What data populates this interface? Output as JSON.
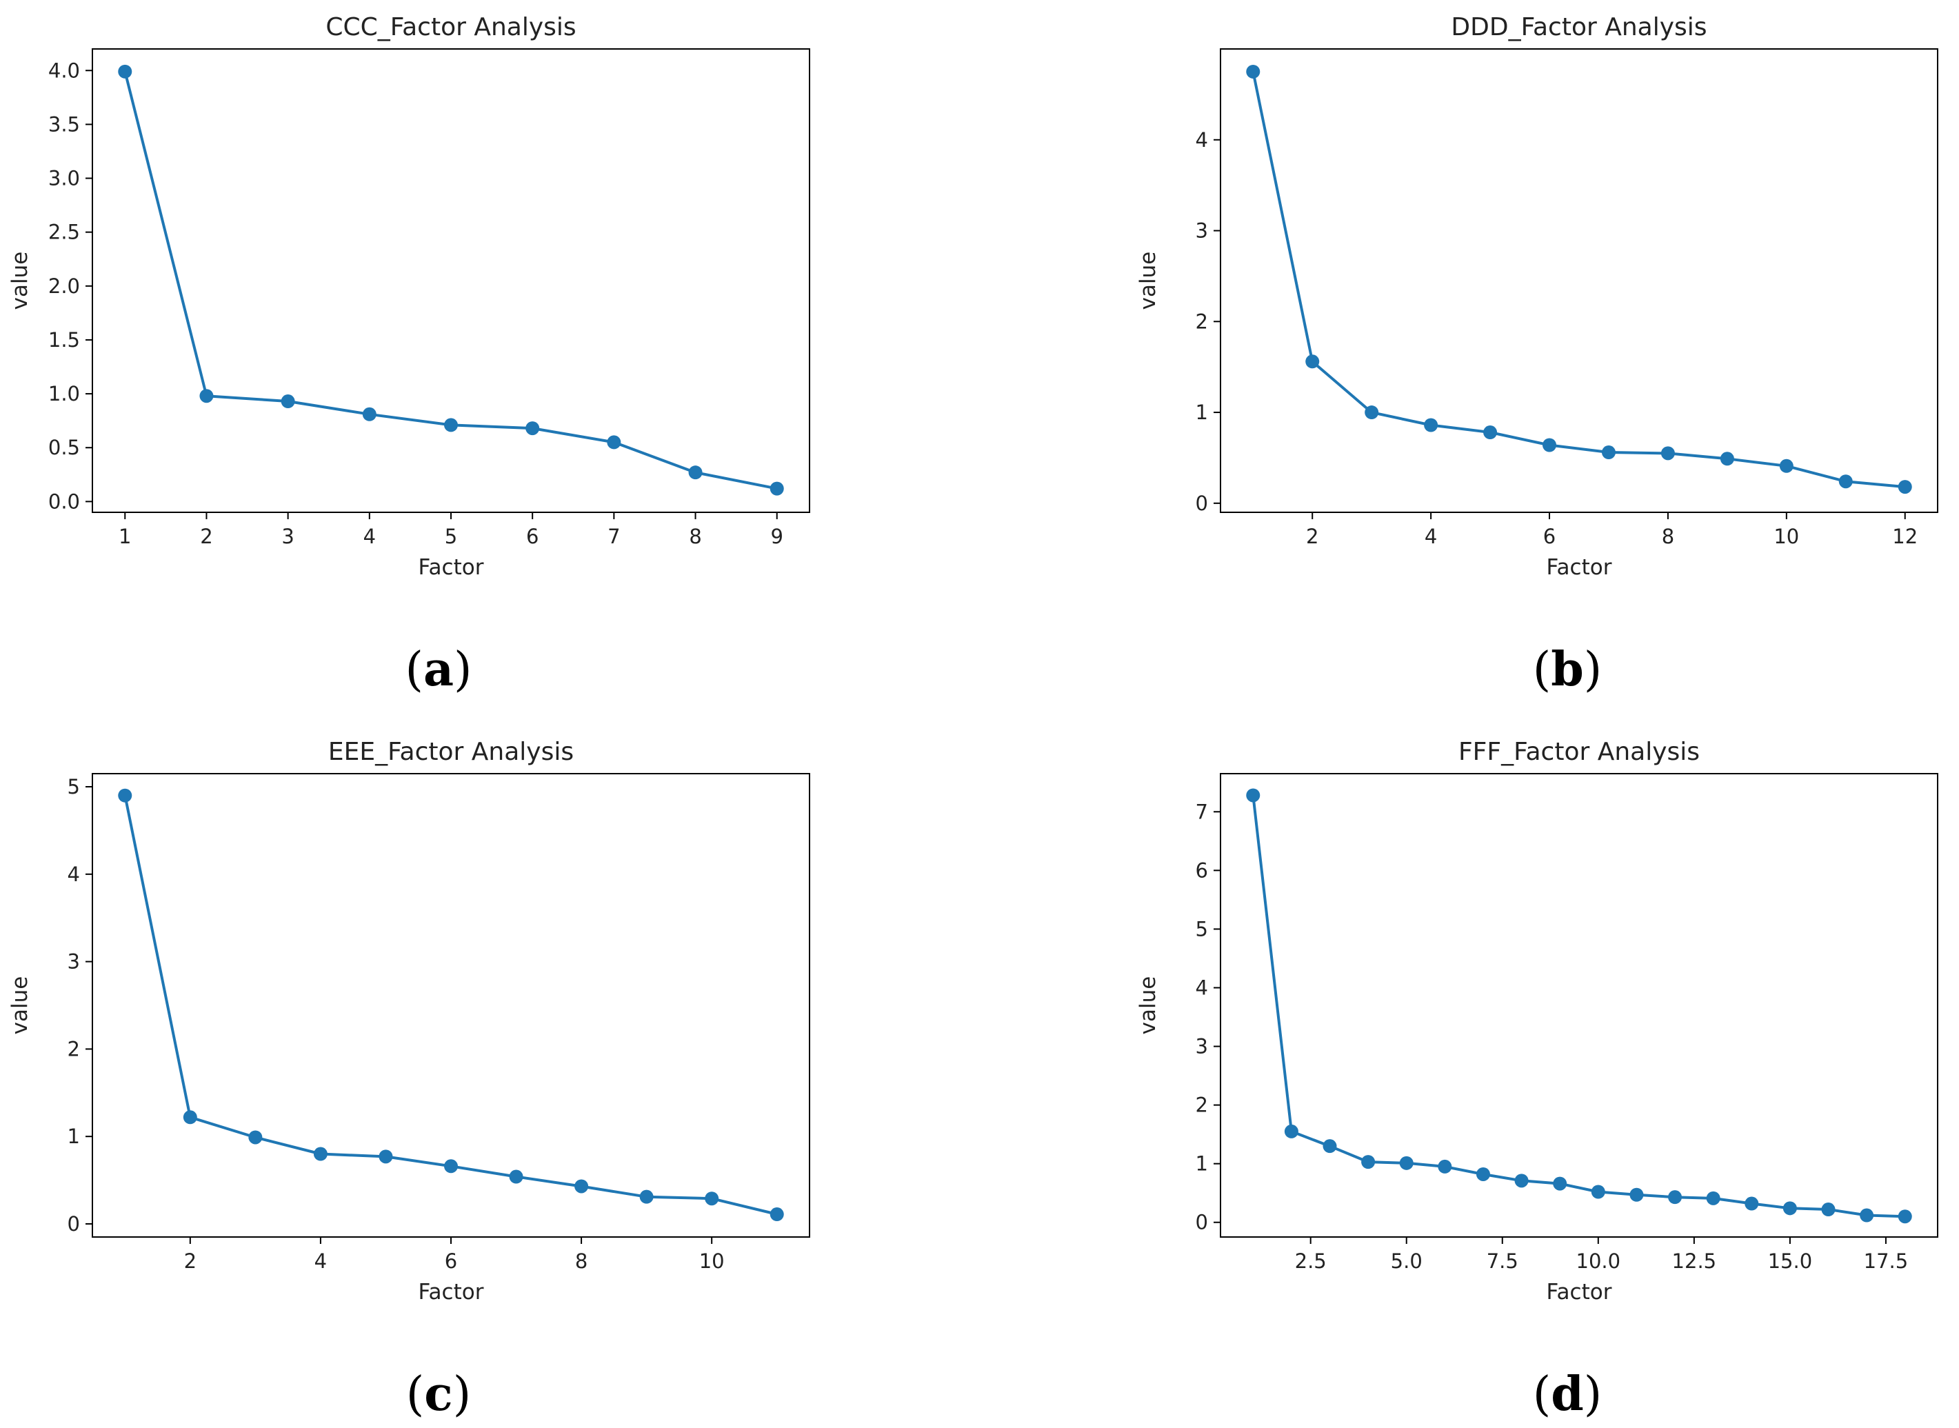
{
  "figure": {
    "captions": [
      "a",
      "b",
      "c",
      "d"
    ]
  },
  "style": {
    "series_color": "#1f77b4"
  },
  "chart_data": [
    {
      "type": "line",
      "title": "CCC_Factor Analysis",
      "xlabel": "Factor",
      "ylabel": "value",
      "xlim": [
        0.6,
        9.4
      ],
      "ylim": [
        -0.1,
        4.2
      ],
      "xticks": [
        1,
        2,
        3,
        4,
        5,
        6,
        7,
        8,
        9
      ],
      "xtick_labels": [
        "1",
        "2",
        "3",
        "4",
        "5",
        "6",
        "7",
        "8",
        "9"
      ],
      "yticks": [
        0,
        0.5,
        1,
        1.5,
        2,
        2.5,
        3,
        3.5,
        4
      ],
      "ytick_labels": [
        "0.0",
        "0.5",
        "1.0",
        "1.5",
        "2.0",
        "2.5",
        "3.0",
        "3.5",
        "4.0"
      ],
      "x": [
        1,
        2,
        3,
        4,
        5,
        6,
        7,
        8,
        9
      ],
      "y": [
        3.99,
        0.98,
        0.93,
        0.81,
        0.71,
        0.68,
        0.55,
        0.27,
        0.12
      ]
    },
    {
      "type": "line",
      "title": "DDD_Factor Analysis",
      "xlabel": "Factor",
      "ylabel": "value",
      "xlim": [
        0.45,
        12.55
      ],
      "ylim": [
        -0.1,
        5.0
      ],
      "xticks": [
        2,
        4,
        6,
        8,
        10,
        12
      ],
      "xtick_labels": [
        "2",
        "4",
        "6",
        "8",
        "10",
        "12"
      ],
      "yticks": [
        0,
        1,
        2,
        3,
        4
      ],
      "ytick_labels": [
        "0",
        "1",
        "2",
        "3",
        "4"
      ],
      "x": [
        1,
        2,
        3,
        4,
        5,
        6,
        7,
        8,
        9,
        10,
        11,
        12
      ],
      "y": [
        4.75,
        1.56,
        1.0,
        0.86,
        0.78,
        0.64,
        0.56,
        0.55,
        0.49,
        0.41,
        0.24,
        0.18
      ]
    },
    {
      "type": "line",
      "title": "EEE_Factor Analysis",
      "xlabel": "Factor",
      "ylabel": "value",
      "xlim": [
        0.5,
        11.5
      ],
      "ylim": [
        -0.15,
        5.15
      ],
      "xticks": [
        2,
        4,
        6,
        8,
        10
      ],
      "xtick_labels": [
        "2",
        "4",
        "6",
        "8",
        "10"
      ],
      "yticks": [
        0,
        1,
        2,
        3,
        4,
        5
      ],
      "ytick_labels": [
        "0",
        "1",
        "2",
        "3",
        "4",
        "5"
      ],
      "x": [
        1,
        2,
        3,
        4,
        5,
        6,
        7,
        8,
        9,
        10,
        11
      ],
      "y": [
        4.9,
        1.22,
        0.99,
        0.8,
        0.77,
        0.66,
        0.54,
        0.43,
        0.31,
        0.29,
        0.11
      ]
    },
    {
      "type": "line",
      "title": "FFF_Factor Analysis",
      "xlabel": "Factor",
      "ylabel": "value",
      "xlim": [
        0.15,
        18.85
      ],
      "ylim": [
        -0.25,
        7.65
      ],
      "xticks": [
        2.5,
        5,
        7.5,
        10,
        12.5,
        15,
        17.5
      ],
      "xtick_labels": [
        "2.5",
        "5.0",
        "7.5",
        "10.0",
        "12.5",
        "15.0",
        "17.5"
      ],
      "yticks": [
        0,
        1,
        2,
        3,
        4,
        5,
        6,
        7
      ],
      "ytick_labels": [
        "0",
        "1",
        "2",
        "3",
        "4",
        "5",
        "6",
        "7"
      ],
      "x": [
        1,
        2,
        3,
        4,
        5,
        6,
        7,
        8,
        9,
        10,
        11,
        12,
        13,
        14,
        15,
        16,
        17,
        18
      ],
      "y": [
        7.28,
        1.55,
        1.3,
        1.03,
        1.01,
        0.95,
        0.82,
        0.71,
        0.66,
        0.52,
        0.47,
        0.43,
        0.41,
        0.32,
        0.24,
        0.22,
        0.12,
        0.1
      ]
    }
  ]
}
